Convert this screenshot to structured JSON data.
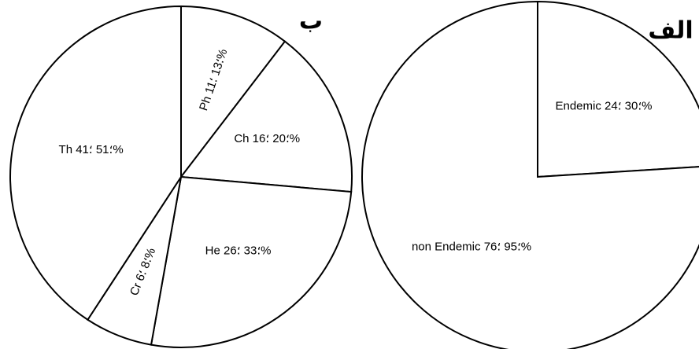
{
  "chart_data": [
    {
      "type": "pie",
      "title": "ب",
      "categories": [
        "Ph",
        "Ch",
        "He",
        "Cr",
        "Th"
      ],
      "values": [
        13,
        20,
        33,
        8,
        51
      ],
      "value_labels": [
        "Ph ؛13 ؛11%",
        "Ch ؛20 ؛16%",
        "He ؛33 ؛26%",
        "Cr ؛8 ؛6%",
        "Th ؛51 ؛41%"
      ],
      "color": "#ffffff"
    },
    {
      "type": "pie",
      "title": "الف",
      "categories": [
        "Endemic",
        "non Endemic"
      ],
      "values": [
        30,
        95
      ],
      "value_labels": [
        "Endemic ؛30 ؛24%",
        "non Endemic ؛95 ؛76%"
      ],
      "color": "#ffffff"
    }
  ]
}
